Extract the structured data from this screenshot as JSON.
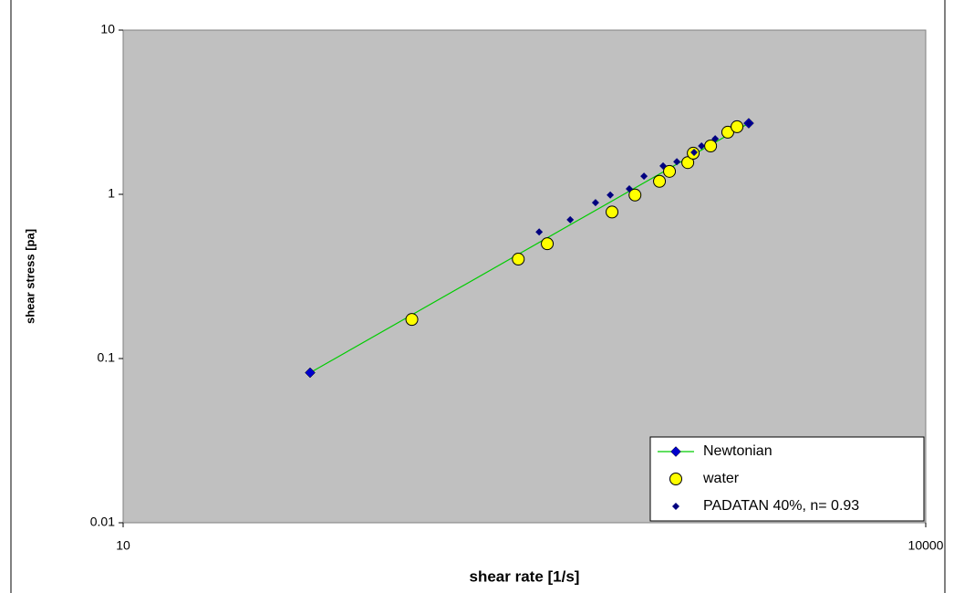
{
  "chart_data": {
    "type": "scatter",
    "x_label": "shear rate [1/s]",
    "y_label": "shear stress [pa]",
    "log_x": true,
    "log_y": true,
    "xlim": [
      10,
      10000
    ],
    "ylim": [
      0.01,
      10
    ],
    "xticks": [
      10,
      10000
    ],
    "yticks": [
      0.01,
      0.1,
      1,
      10
    ],
    "legend": "bottom-right",
    "series": [
      {
        "name": "Newtonian",
        "color": "#00cc00",
        "marker_color": "#0000cc",
        "style": "line-diamond",
        "x": [
          50,
          2180
        ],
        "values": [
          0.082,
          2.71
        ]
      },
      {
        "name": "water",
        "color": "#ffff00",
        "style": "circle",
        "x": [
          120,
          300,
          385,
          672,
          819,
          1011,
          1102,
          1290,
          1352,
          1570,
          1820,
          1971
        ],
        "values": [
          0.173,
          0.403,
          0.5,
          0.78,
          0.99,
          1.2,
          1.38,
          1.56,
          1.78,
          1.97,
          2.39,
          2.58
        ]
      },
      {
        "name": "PADATAN 40%, n= 0.93",
        "color": "#000080",
        "style": "diamond",
        "x": [
          359,
          469,
          583,
          662,
          780,
          885,
          1043,
          1174,
          1362,
          1452,
          1633,
          2183
        ],
        "values": [
          0.59,
          0.7,
          0.89,
          0.99,
          1.08,
          1.29,
          1.49,
          1.58,
          1.8,
          1.97,
          2.18,
          2.71
        ]
      }
    ]
  }
}
